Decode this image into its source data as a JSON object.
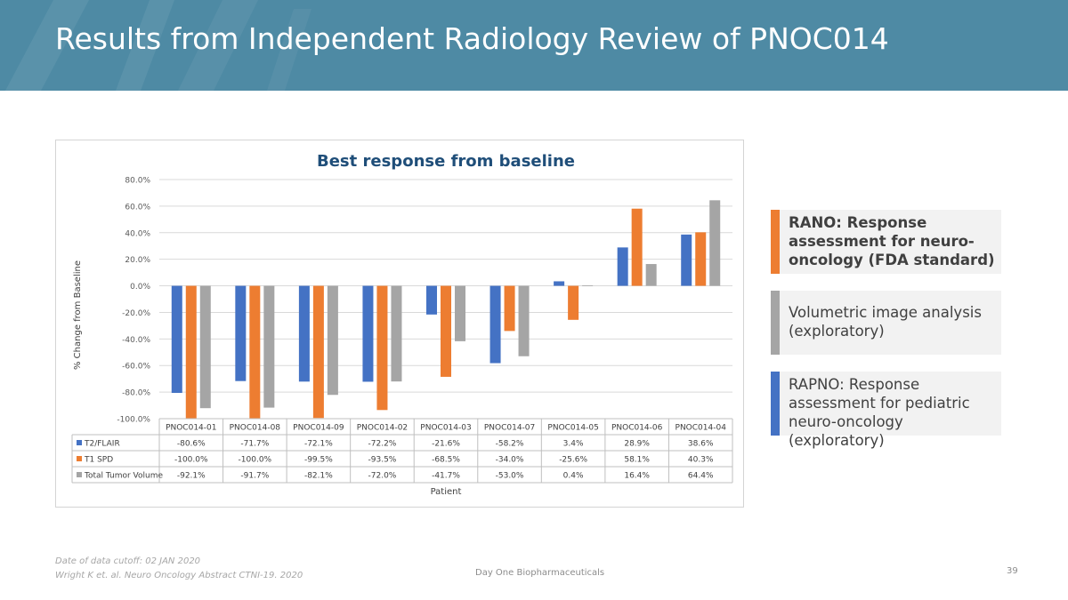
{
  "slide": {
    "title": "Results from Independent Radiology Review of PNOC014"
  },
  "chart_data": {
    "type": "bar",
    "title": "Best response from baseline",
    "xlabel": "Patient",
    "ylabel": "% Change from Baseline",
    "ylim": [
      -100,
      80
    ],
    "yticks": [
      80,
      60,
      40,
      20,
      0,
      -20,
      -40,
      -60,
      -80,
      -100
    ],
    "ytick_labels": [
      "80.0%",
      "60.0%",
      "40.0%",
      "20.0%",
      "0.0%",
      "-20.0%",
      "-40.0%",
      "-60.0%",
      "-80.0%",
      "-100.0%"
    ],
    "grid": true,
    "legend": "data-table",
    "categories": [
      "PNOC014-01",
      "PNOC014-08",
      "PNOC014-09",
      "PNOC014-02",
      "PNOC014-03",
      "PNOC014-07",
      "PNOC014-05",
      "PNOC014-06",
      "PNOC014-04"
    ],
    "series": [
      {
        "name": "T2/FLAIR",
        "color": "#4472c4",
        "values": [
          -80.6,
          -71.7,
          -72.1,
          -72.2,
          -21.6,
          -58.2,
          3.4,
          28.9,
          38.6
        ],
        "labels": [
          "-80.6%",
          "-71.7%",
          "-72.1%",
          "-72.2%",
          "-21.6%",
          "-58.2%",
          "3.4%",
          "28.9%",
          "38.6%"
        ]
      },
      {
        "name": "T1 SPD",
        "color": "#ed7d31",
        "values": [
          -100.0,
          -100.0,
          -99.5,
          -93.5,
          -68.5,
          -34.0,
          -25.6,
          58.1,
          40.3
        ],
        "labels": [
          "-100.0%",
          "-100.0%",
          "-99.5%",
          "-93.5%",
          "-68.5%",
          "-34.0%",
          "-25.6%",
          "58.1%",
          "40.3%"
        ]
      },
      {
        "name": "Total Tumor Volume",
        "color": "#a5a5a5",
        "values": [
          -92.1,
          -91.7,
          -82.1,
          -72.0,
          -41.7,
          -53.0,
          0.4,
          16.4,
          64.4
        ],
        "labels": [
          "-92.1%",
          "-91.7%",
          "-82.1%",
          "-72.0%",
          "-41.7%",
          "-53.0%",
          "0.4%",
          "16.4%",
          "64.4%"
        ]
      }
    ]
  },
  "legend_boxes": [
    {
      "text": "RANO: Response assessment for neuro-oncology (FDA standard)",
      "color": "#ed7d31",
      "bold": true
    },
    {
      "text": "Volumetric image analysis (exploratory)",
      "color": "#a5a5a5",
      "bold": false
    },
    {
      "text": "RAPNO: Response assessment for pediatric neuro-oncology (exploratory)",
      "color": "#4472c4",
      "bold": false
    }
  ],
  "footer": {
    "cutoff": "Date of data cutoff:  02 JAN 2020",
    "citation": "Wright K et. al.  Neuro Oncology Abstract CTNI-19. 2020",
    "company": "Day One Biopharmaceuticals",
    "page": "39"
  }
}
